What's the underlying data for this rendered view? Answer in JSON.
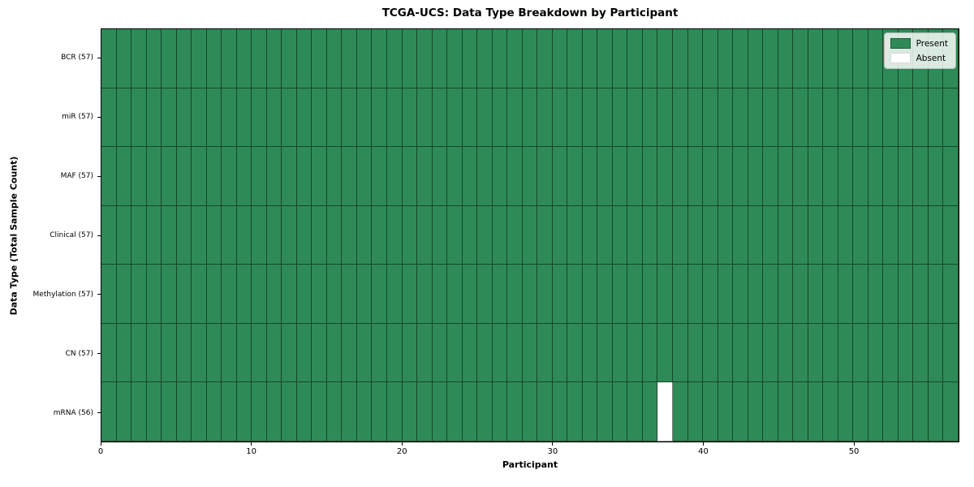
{
  "chart_data": {
    "type": "heatmap",
    "title": "TCGA-UCS: Data Type Breakdown by Participant",
    "xlabel": "Participant",
    "ylabel": "Data Type (Total Sample Count)",
    "n_participants": 57,
    "x_ticks": [
      0,
      10,
      20,
      30,
      40,
      50
    ],
    "rows": [
      {
        "name": "BCR",
        "label": "BCR (57)",
        "sample_count": 57,
        "absent_participants": []
      },
      {
        "name": "miR",
        "label": "miR (57)",
        "sample_count": 57,
        "absent_participants": []
      },
      {
        "name": "MAF",
        "label": "MAF (57)",
        "sample_count": 57,
        "absent_participants": []
      },
      {
        "name": "Clinical",
        "label": "Clinical (57)",
        "sample_count": 57,
        "absent_participants": []
      },
      {
        "name": "Methylation",
        "label": "Methylation (57)",
        "sample_count": 57,
        "absent_participants": []
      },
      {
        "name": "CN",
        "label": "CN (57)",
        "sample_count": 57,
        "absent_participants": []
      },
      {
        "name": "mRNA",
        "label": "mRNA (56)",
        "sample_count": 56,
        "absent_participants": [
          37
        ]
      }
    ],
    "legend": [
      {
        "label": "Present",
        "color": "#2e8b57"
      },
      {
        "label": "Absent",
        "color": "#ffffff"
      }
    ],
    "legend_position": "upper right",
    "colors": {
      "present": "#2e8b57",
      "absent": "#ffffff",
      "cell_edge": "rgba(0,0,0,0.5)",
      "frame": "#000000"
    },
    "xlim": [
      0,
      57
    ],
    "grid": "cell-borders"
  }
}
